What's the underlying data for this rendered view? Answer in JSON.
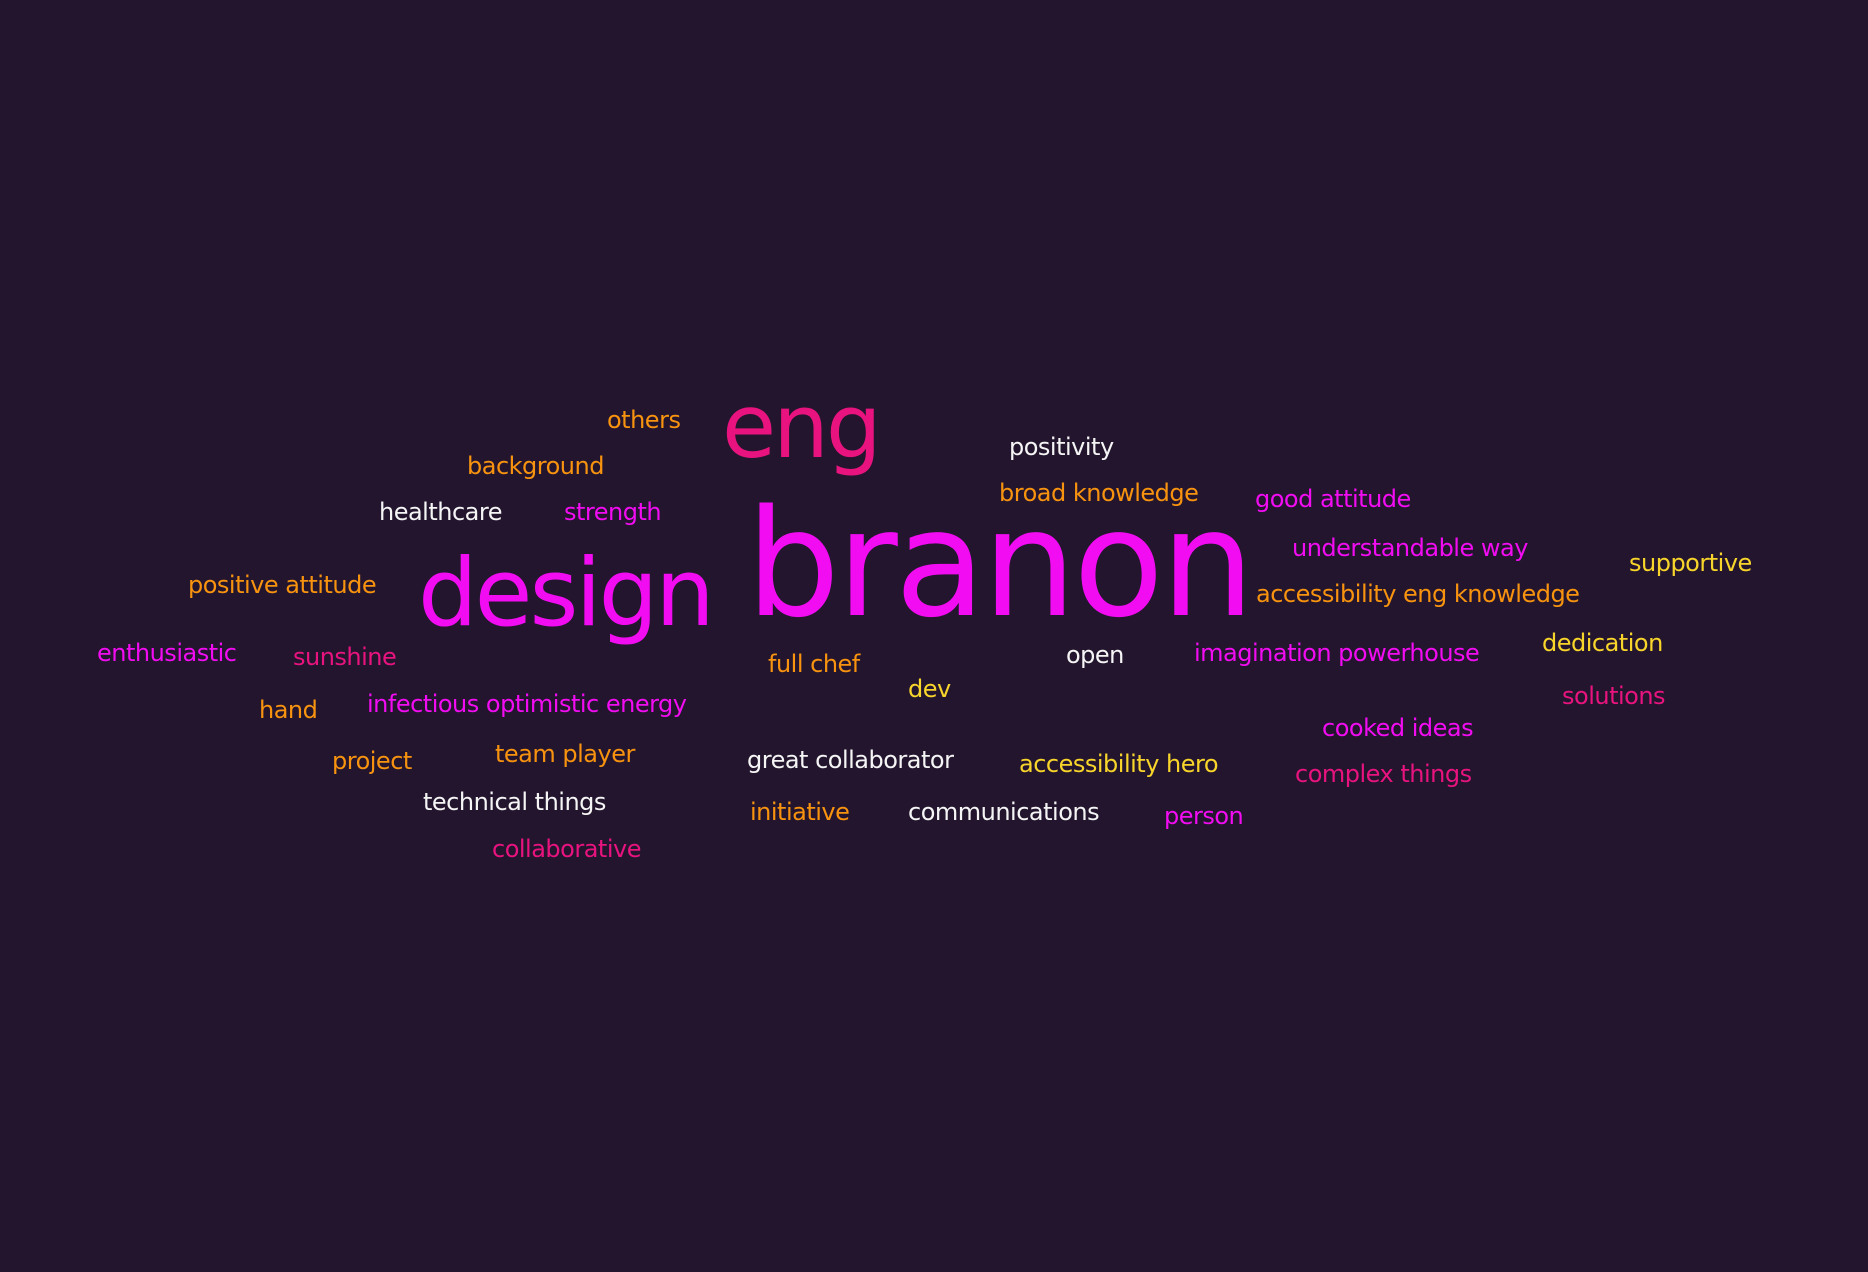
{
  "colors": {
    "background": "#23152e",
    "magenta": "#f20cf2",
    "pink": "#e8137e",
    "orange": "#f7930f",
    "yellow": "#f8d52a",
    "white": "#f5f5f5"
  },
  "words": [
    {
      "text": "branon",
      "color": "magenta",
      "size": "largest"
    },
    {
      "text": "design",
      "color": "magenta",
      "size": "very large"
    },
    {
      "text": "eng",
      "color": "pink",
      "size": "very large"
    },
    {
      "text": "others",
      "color": "orange"
    },
    {
      "text": "background",
      "color": "orange"
    },
    {
      "text": "healthcare",
      "color": "white"
    },
    {
      "text": "strength",
      "color": "magenta"
    },
    {
      "text": "positivity",
      "color": "white"
    },
    {
      "text": "broad knowledge",
      "color": "orange"
    },
    {
      "text": "good attitude",
      "color": "magenta"
    },
    {
      "text": "understandable way",
      "color": "magenta"
    },
    {
      "text": "supportive",
      "color": "yellow"
    },
    {
      "text": "accessibility eng knowledge",
      "color": "orange"
    },
    {
      "text": "positive attitude",
      "color": "orange"
    },
    {
      "text": "enthusiastic",
      "color": "magenta"
    },
    {
      "text": "sunshine",
      "color": "pink"
    },
    {
      "text": "full chef",
      "color": "orange"
    },
    {
      "text": "open",
      "color": "white"
    },
    {
      "text": "imagination powerhouse",
      "color": "magenta"
    },
    {
      "text": "dedication",
      "color": "yellow"
    },
    {
      "text": "dev",
      "color": "yellow"
    },
    {
      "text": "hand",
      "color": "orange"
    },
    {
      "text": "infectious optimistic energy",
      "color": "magenta"
    },
    {
      "text": "solutions",
      "color": "pink"
    },
    {
      "text": "cooked ideas",
      "color": "magenta"
    },
    {
      "text": "project",
      "color": "orange"
    },
    {
      "text": "team player",
      "color": "orange"
    },
    {
      "text": "great collaborator",
      "color": "white"
    },
    {
      "text": "accessibility hero",
      "color": "yellow"
    },
    {
      "text": "complex things",
      "color": "pink"
    },
    {
      "text": "technical things",
      "color": "white"
    },
    {
      "text": "initiative",
      "color": "orange"
    },
    {
      "text": "communications",
      "color": "white"
    },
    {
      "text": "person",
      "color": "magenta"
    },
    {
      "text": "collaborative",
      "color": "pink"
    }
  ]
}
